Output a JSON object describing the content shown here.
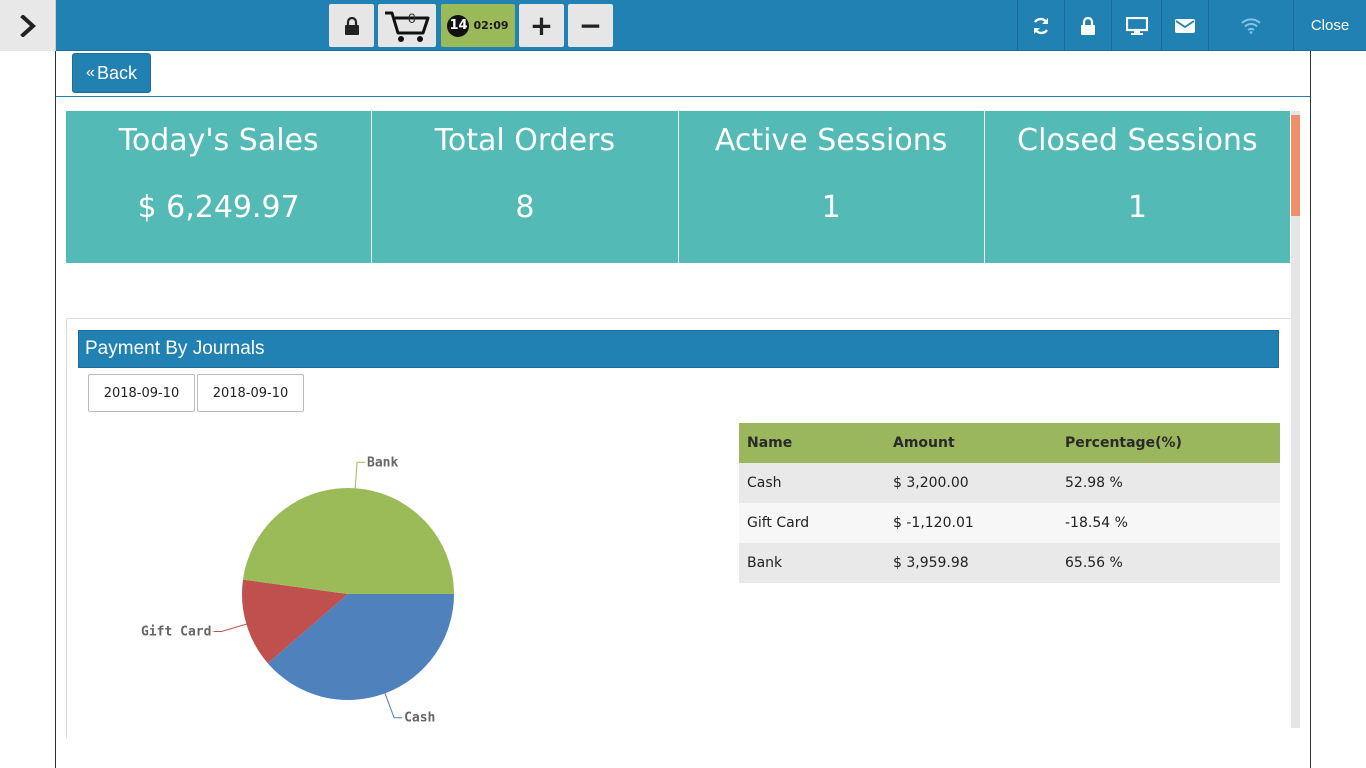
{
  "topbar": {
    "cart_count": "0",
    "timer_count": "14",
    "timer_time": "02:09",
    "plus": "+",
    "minus": "−",
    "close_label": "Close"
  },
  "back_label": "Back",
  "stats": [
    {
      "title": "Today's Sales",
      "value": "$ 6,249.97"
    },
    {
      "title": "Total Orders",
      "value": "8"
    },
    {
      "title": "Active Sessions",
      "value": "1"
    },
    {
      "title": "Closed Sessions",
      "value": "1"
    }
  ],
  "panel": {
    "title": "Payment By Journals",
    "date_from": "2018-09-10",
    "date_to": "2018-09-10"
  },
  "table": {
    "headers": [
      "Name",
      "Amount",
      "Percentage(%)"
    ],
    "rows": [
      [
        "Cash",
        "$ 3,200.00",
        "52.98 %"
      ],
      [
        "Gift Card",
        "$ -1,120.01",
        "-18.54 %"
      ],
      [
        "Bank",
        "$ 3,959.98",
        "65.56 %"
      ]
    ]
  },
  "chart_data": {
    "type": "pie",
    "slices": [
      {
        "label": "Cash",
        "value": 3200.0,
        "color": "#4f81bd"
      },
      {
        "label": "Gift Card",
        "value": 1120.01,
        "color": "#c0504d"
      },
      {
        "label": "Bank",
        "value": 3959.98,
        "color": "#9bbb59"
      }
    ]
  },
  "colors": {
    "primary": "#2181b3",
    "stat_bg": "#53bab5",
    "table_header": "#9ab75d",
    "timer_bg": "#9aba59"
  }
}
